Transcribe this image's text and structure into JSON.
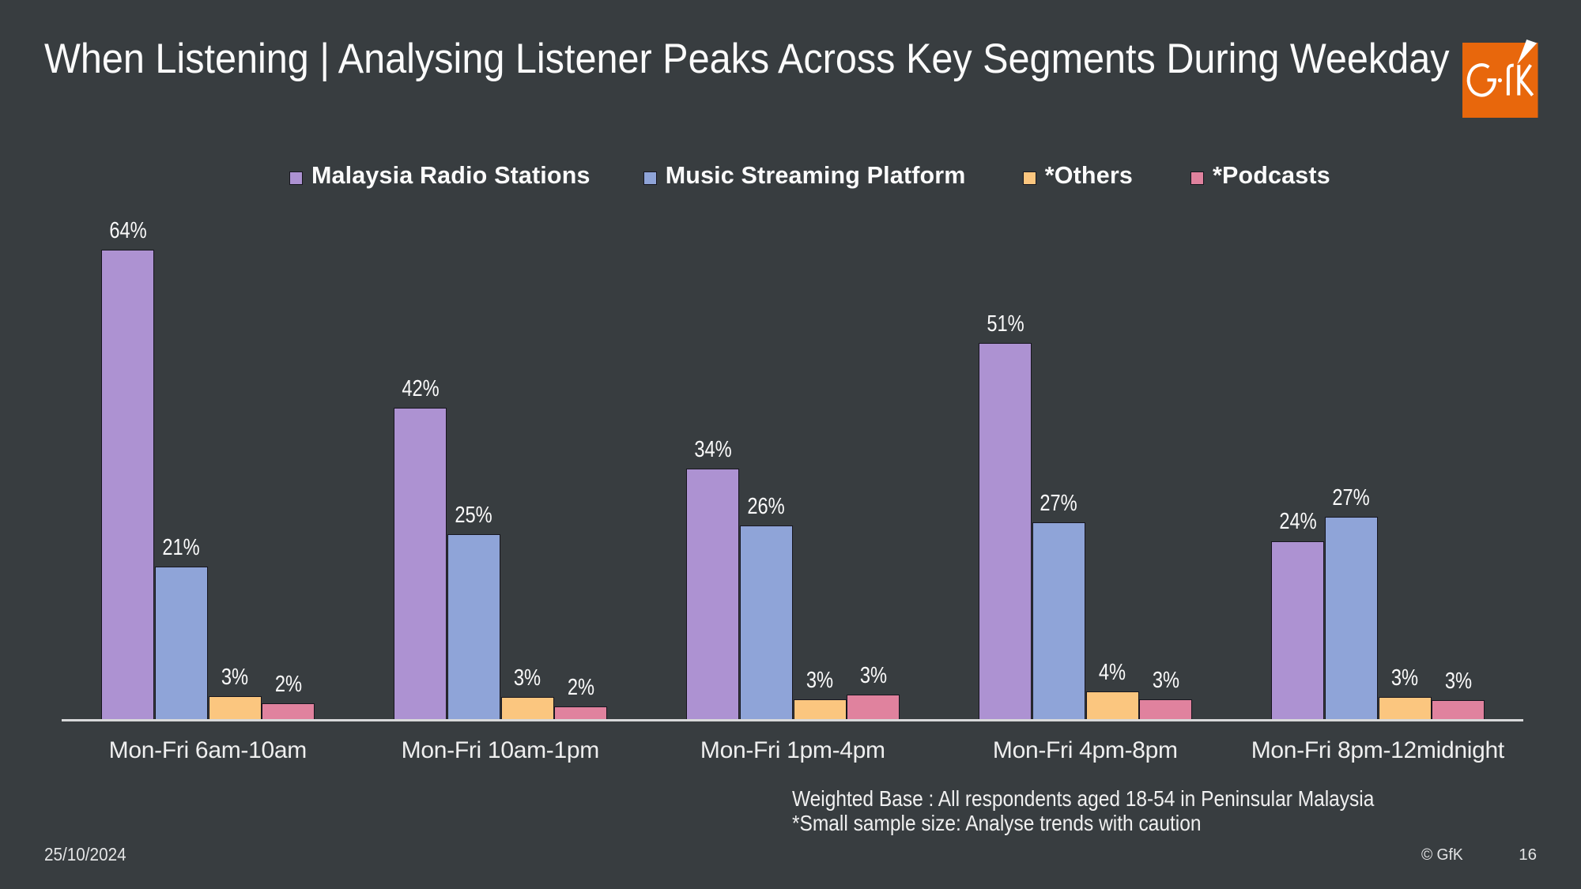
{
  "slide": {
    "title": "When Listening | Analysing Listener Peaks Across Key Segments During Weekday",
    "logo_text": "GfK",
    "notes": {
      "line1": "Weighted Base : All respondents aged 18-54 in Peninsular Malaysia",
      "line2": "*Small sample size: Analyse trends with caution"
    },
    "footer": {
      "date": "25/10/2024",
      "copyright": "© GfK",
      "page_number": "16"
    }
  },
  "colors": {
    "background": "#383D40",
    "title_text": "#FBFBFB",
    "axis_line": "#D8D9DA",
    "bar_border": "#17161F",
    "label_text": "#FAFAFA",
    "logo_orange": "#E8670C",
    "logo_mark": "#FFFFFF"
  },
  "chart_data": {
    "type": "bar",
    "title": "",
    "xlabel": "",
    "ylabel": "",
    "value_suffix": "%",
    "grid": false,
    "legend_position": "top",
    "ylim": [
      0,
      70
    ],
    "categories": [
      "Mon-Fri 6am-10am",
      "Mon-Fri 10am-1pm",
      "Mon-Fri 1pm-4pm",
      "Mon-Fri 4pm-8pm",
      "Mon-Fri 8pm-12midnight"
    ],
    "series": [
      {
        "name": "Malaysia Radio Stations",
        "color": "#AD92D2",
        "values": [
          64,
          42,
          34,
          51,
          24
        ],
        "plot_values_estimated": [
          63.4,
          42.1,
          33.9,
          50.8,
          24.1
        ]
      },
      {
        "name": "Music Streaming Platform",
        "color": "#8FA4D8",
        "values": [
          21,
          25,
          26,
          27,
          27
        ],
        "plot_values_estimated": [
          20.6,
          25.0,
          26.2,
          26.6,
          27.4
        ]
      },
      {
        "name": "*Others",
        "color": "#FBC67F",
        "values": [
          3,
          3,
          3,
          4,
          3
        ],
        "plot_values_estimated": [
          3.1,
          3.0,
          2.7,
          3.8,
          3.0
        ]
      },
      {
        "name": "*Podcasts",
        "color": "#E0829E",
        "values": [
          2,
          2,
          3,
          3,
          3
        ],
        "plot_values_estimated": [
          2.2,
          1.8,
          3.4,
          2.7,
          2.6
        ]
      }
    ]
  }
}
